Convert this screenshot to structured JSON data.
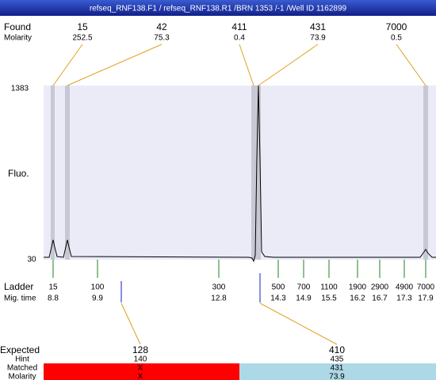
{
  "title": "refseq_RNF138.F1 / refseq_RNF138.R1 /BRN 1353 /-1 /Well ID 1162899",
  "found": {
    "label": "Found",
    "sublabel": "Molarity",
    "peaks": [
      {
        "size": "15",
        "molarity": "252.5"
      },
      {
        "size": "42",
        "molarity": "75.3"
      },
      {
        "size": "411",
        "molarity": "0.4"
      },
      {
        "size": "431",
        "molarity": "73.9"
      },
      {
        "size": "7000",
        "molarity": "0.5"
      }
    ]
  },
  "y_axis": {
    "label": "Fluo.",
    "max": "1383",
    "min": "30"
  },
  "ladder": {
    "label": "Ladder",
    "sublabel": "Mig. time",
    "items": [
      {
        "size": "15",
        "time": "8.8"
      },
      {
        "size": "100",
        "time": "9.9"
      },
      {
        "size": "300",
        "time": "12.8"
      },
      {
        "size": "500",
        "time": "14.3"
      },
      {
        "size": "700",
        "time": "14.9"
      },
      {
        "size": "1100",
        "time": "15.5"
      },
      {
        "size": "1900",
        "time": "16.2"
      },
      {
        "size": "2900",
        "time": "16.7"
      },
      {
        "size": "4900",
        "time": "17.3"
      },
      {
        "size": "7000",
        "time": "17.9"
      }
    ]
  },
  "expected": {
    "label": "Expected",
    "rows": [
      "Hint",
      "Matched",
      "Molarity"
    ],
    "items": [
      {
        "size": "128",
        "hint": "140",
        "matched": "X",
        "molarity": "X"
      },
      {
        "size": "410",
        "hint": "435",
        "matched": "431",
        "molarity": "73.9"
      }
    ]
  }
}
